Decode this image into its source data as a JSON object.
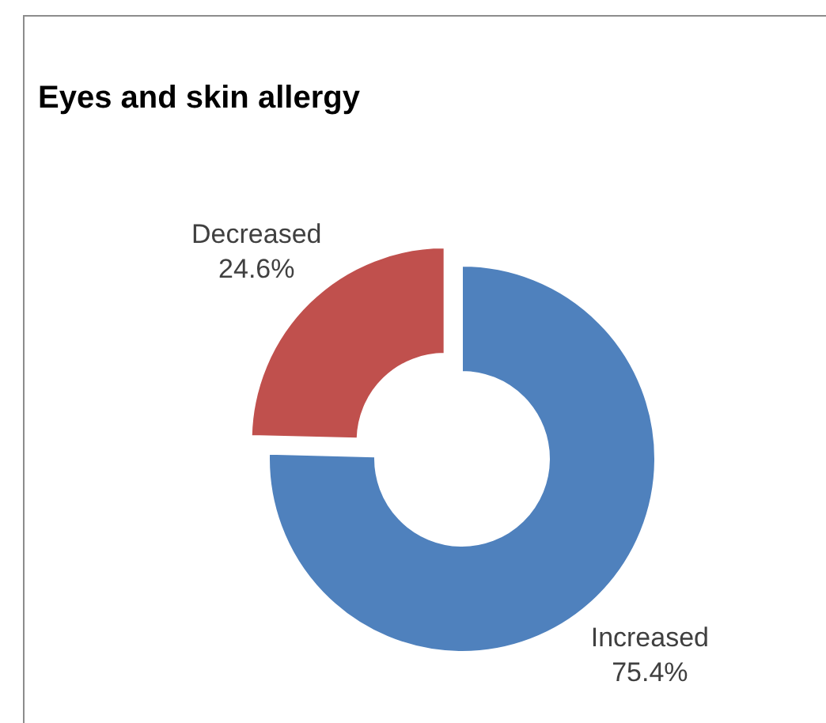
{
  "chart_data": {
    "type": "donut",
    "title": "Eyes and skin allergy",
    "categories": [
      "Increased",
      "Decreased"
    ],
    "values": [
      75.4,
      24.6
    ],
    "value_labels": [
      "75.4%",
      "24.6%"
    ],
    "colors": [
      "#4f81bd",
      "#c0504d"
    ],
    "legend": false
  }
}
